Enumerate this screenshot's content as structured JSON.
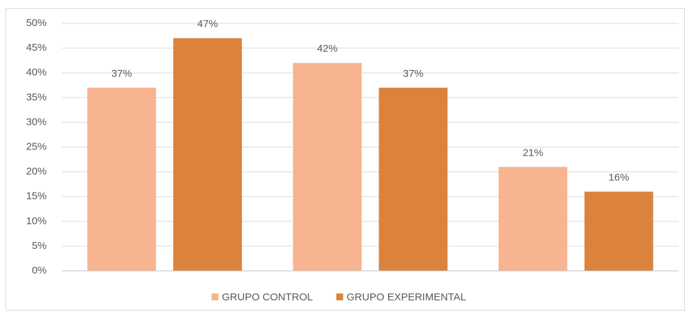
{
  "chart_data": {
    "type": "bar",
    "categories": [
      null,
      null,
      null
    ],
    "series": [
      {
        "name": "GRUPO CONTROL",
        "color": "#f8b490",
        "values": [
          37,
          42,
          21
        ],
        "value_labels": [
          "37%",
          "42%",
          "21%"
        ]
      },
      {
        "name": "GRUPO EXPERIMENTAL",
        "color": "#db833d",
        "values": [
          47,
          37,
          16
        ],
        "value_labels": [
          "47%",
          "37%",
          "16%"
        ]
      }
    ],
    "ylim": [
      0,
      50
    ],
    "yticks": [
      {
        "value": 0,
        "label": "0%"
      },
      {
        "value": 5,
        "label": "5%"
      },
      {
        "value": 10,
        "label": "10%"
      },
      {
        "value": 15,
        "label": "15%"
      },
      {
        "value": 20,
        "label": "20%"
      },
      {
        "value": 25,
        "label": "25%"
      },
      {
        "value": 30,
        "label": "30%"
      },
      {
        "value": 35,
        "label": "35%"
      },
      {
        "value": 40,
        "label": "40%"
      },
      {
        "value": 45,
        "label": "45%"
      },
      {
        "value": 50,
        "label": "50%"
      }
    ],
    "grid": true,
    "legend": "bottom"
  }
}
